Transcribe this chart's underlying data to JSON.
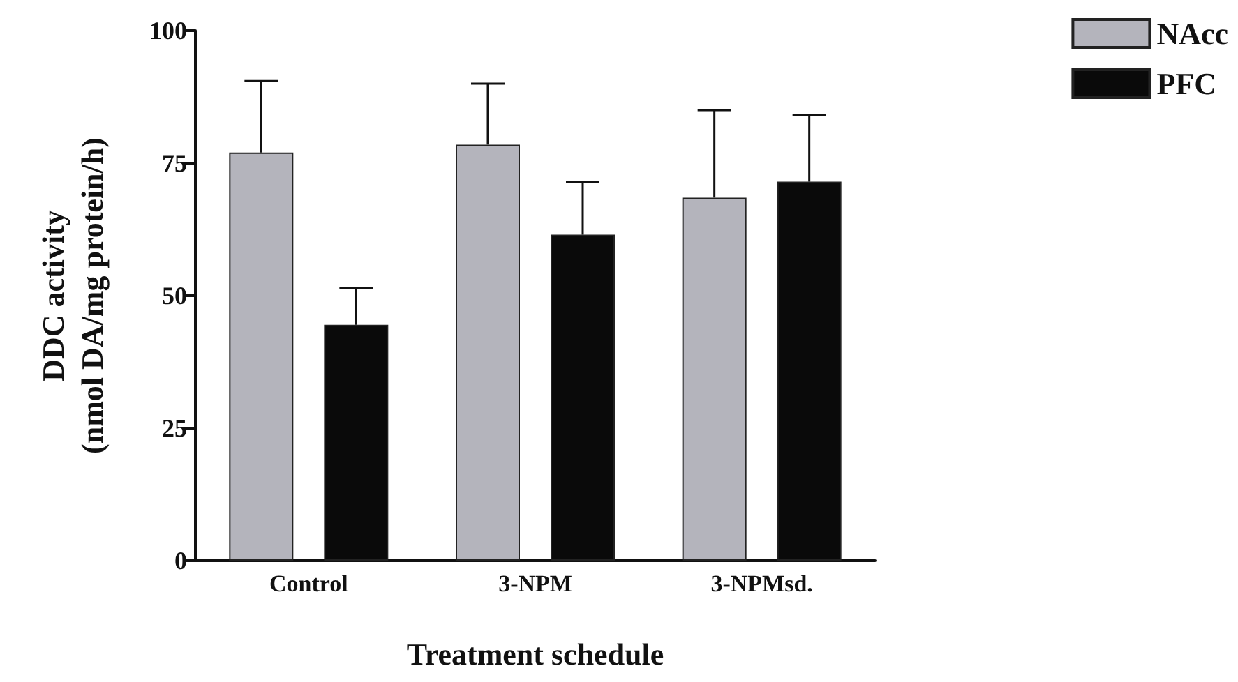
{
  "chart_data": {
    "type": "bar",
    "xlabel": "Treatment schedule",
    "ylabel": "DDC activity\n(nmol DA/mg protein/h)",
    "categories": [
      "Control",
      "3-NPM",
      "3-NPMsd."
    ],
    "series": [
      {
        "name": "NAcc",
        "color": "#b4b4bc",
        "values": [
          77,
          78.5,
          68.5
        ],
        "errors": [
          [
            77,
            90.5
          ],
          [
            78.5,
            90
          ],
          [
            68.5,
            85
          ]
        ]
      },
      {
        "name": "PFC",
        "color": "#0a0a0a",
        "values": [
          44.5,
          61.5,
          71.5
        ],
        "errors": [
          [
            44.5,
            51.5
          ],
          [
            61.5,
            71.5
          ],
          [
            71.5,
            84
          ]
        ]
      }
    ],
    "ylim": [
      0,
      100
    ],
    "yticks": [
      0,
      25,
      50,
      75,
      100
    ],
    "grid": false,
    "legend": "top right"
  }
}
